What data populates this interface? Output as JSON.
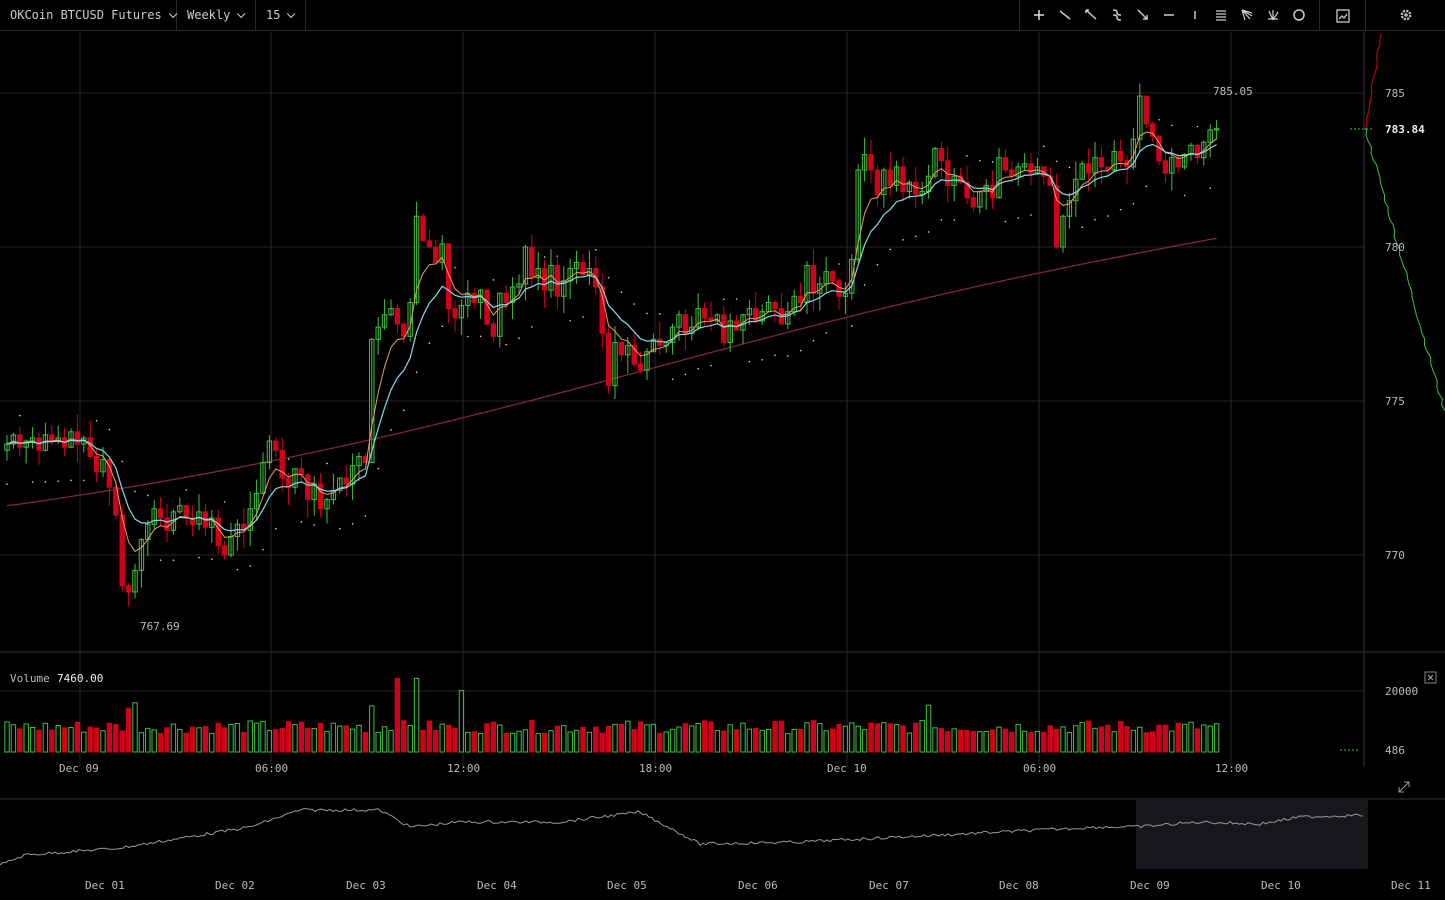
{
  "toolbar": {
    "symbol": "OKCoin BTCUSD Futures",
    "period": "Weekly",
    "interval": "15",
    "tools": [
      "crosshair-icon",
      "trendline-icon",
      "ray-icon",
      "curve-icon",
      "arrow-icon",
      "horizontal-line-icon",
      "vertical-line-icon",
      "channel-icon",
      "fan-icon",
      "fibonacci-icon",
      "circle-icon"
    ],
    "chart-type-icon": "chart-type-icon",
    "settings-icon": "gear-icon"
  },
  "price_axis": {
    "ticks": [
      "785",
      "780",
      "775",
      "770"
    ],
    "last_price": "783.84",
    "high_label": "785.05",
    "low_label": "767.69"
  },
  "volume": {
    "label": "Volume",
    "value": "7460.00",
    "ticks": [
      "20000",
      "486"
    ]
  },
  "time_axis": {
    "labels": [
      "Dec 09",
      "06:00",
      "12:00",
      "18:00",
      "Dec 10",
      "06:00",
      "12:00"
    ]
  },
  "navigator": {
    "labels": [
      "Dec 01",
      "Dec 02",
      "Dec 03",
      "Dec 04",
      "Dec 05",
      "Dec 06",
      "Dec 07",
      "Dec 08",
      "Dec 09",
      "Dec 10",
      "Dec 11"
    ]
  },
  "colors": {
    "up": "#3ec23e",
    "down": "#d0021b",
    "ema_fast": "#e8a060",
    "ema_slow": "#8ad8e8",
    "ma_long": "#7a2a3a",
    "grid": "#262626"
  },
  "chart_data": {
    "type": "candlestick",
    "symbol": "OKCoin BTCUSD Futures",
    "interval": "15",
    "y_range": [
      766.5,
      786.5
    ],
    "x_labels": [
      "Dec 09",
      "06:00",
      "12:00",
      "18:00",
      "Dec 10",
      "06:00",
      "12:00"
    ],
    "closes": [
      773.6,
      773.9,
      773.5,
      773.7,
      773.8,
      773.4,
      773.9,
      773.7,
      773.8,
      773.5,
      774.0,
      773.6,
      773.8,
      773.2,
      772.7,
      773.1,
      772.2,
      771.3,
      769.0,
      768.8,
      769.5,
      770.5,
      771.0,
      771.5,
      771.2,
      770.8,
      771.4,
      771.6,
      771.2,
      771.0,
      771.4,
      770.9,
      771.2,
      770.3,
      770.0,
      770.6,
      771.0,
      770.8,
      771.5,
      772.0,
      773.0,
      773.7,
      773.4,
      772.5,
      772.2,
      772.8,
      772.6,
      771.8,
      772.3,
      771.5,
      771.8,
      772.1,
      772.5,
      772.3,
      772.9,
      773.2,
      773.0,
      777.0,
      777.4,
      777.8,
      778.0,
      777.5,
      777.1,
      778.2,
      781.0,
      780.2,
      780.0,
      779.5,
      780.1,
      778.0,
      777.7,
      778.1,
      778.5,
      778.2,
      778.6,
      777.5,
      777.1,
      778.5,
      778.2,
      778.7,
      778.8,
      780.0,
      779.0,
      779.3,
      778.6,
      779.4,
      778.4,
      778.9,
      779.3,
      779.5,
      779.1,
      779.3,
      778.7,
      777.2,
      775.5,
      776.9,
      776.5,
      776.8,
      776.2,
      776.0,
      776.6,
      777.0,
      776.8,
      776.9,
      777.4,
      777.8,
      777.2,
      777.4,
      778.0,
      777.7,
      777.6,
      777.8,
      776.9,
      777.6,
      777.3,
      777.8,
      778.0,
      777.6,
      777.9,
      778.2,
      778.0,
      777.5,
      777.9,
      778.4,
      778.2,
      779.4,
      778.5,
      778.8,
      779.2,
      778.9,
      778.4,
      778.5,
      779.6,
      782.5,
      783.0,
      782.5,
      781.7,
      782.5,
      782.0,
      782.6,
      781.8,
      782.1,
      781.7,
      781.8,
      782.3,
      783.2,
      782.8,
      782.0,
      782.3,
      782.1,
      781.6,
      781.3,
      781.8,
      782.0,
      781.6,
      782.9,
      782.5,
      782.3,
      782.6,
      782.7,
      782.4,
      782.6,
      782.3,
      782.0,
      780.0,
      781.0,
      781.5,
      782.2,
      782.7,
      782.4,
      782.9,
      782.6,
      782.5,
      783.1,
      782.8,
      782.6,
      783.5,
      784.9,
      784.0,
      783.6,
      782.8,
      782.4,
      782.9,
      782.6,
      783.0,
      783.3,
      782.9,
      783.4,
      783.8,
      783.84
    ],
    "volume_y_range": [
      0,
      22000
    ]
  }
}
